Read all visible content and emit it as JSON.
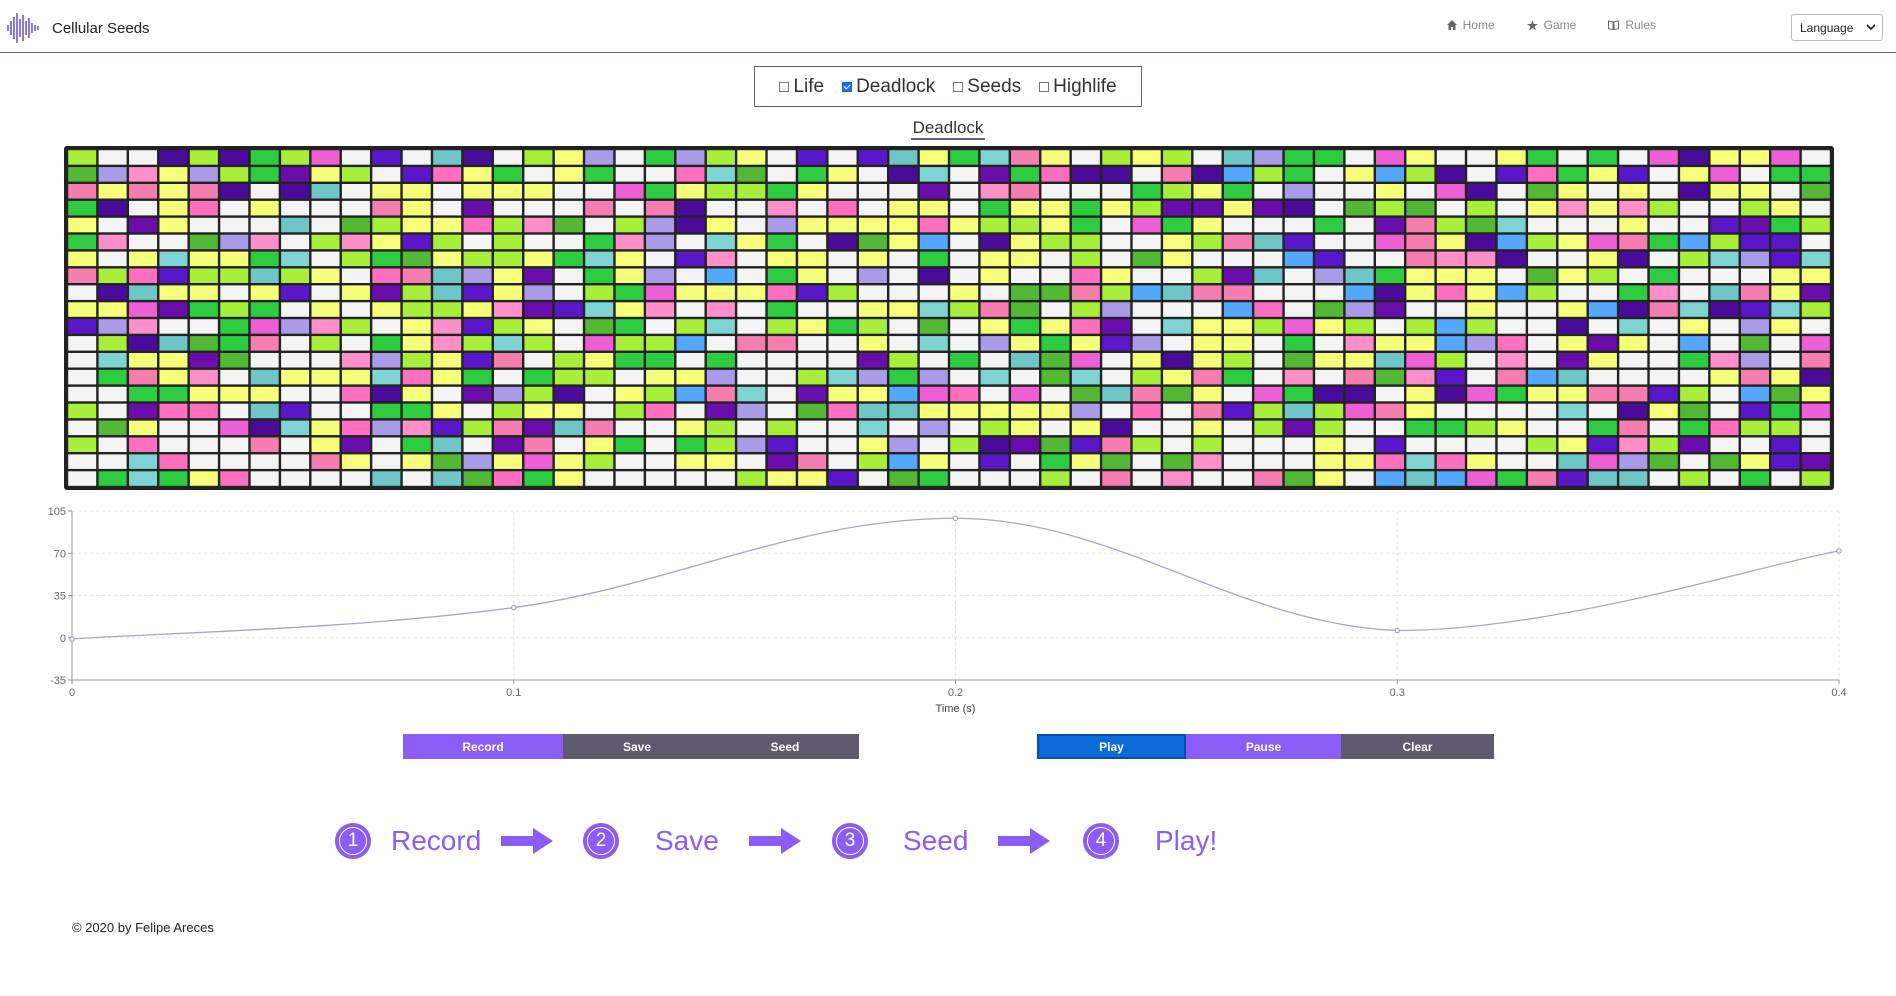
{
  "app": {
    "title": "Cellular Seeds"
  },
  "nav": {
    "items": [
      {
        "label": "Home",
        "icon": "home-icon"
      },
      {
        "label": "Game",
        "icon": "star-icon"
      },
      {
        "label": "Rules",
        "icon": "book-icon"
      }
    ],
    "language": "Language"
  },
  "rules": {
    "options": [
      {
        "label": "Life",
        "checked": false
      },
      {
        "label": "Deadlock",
        "checked": true
      },
      {
        "label": "Seeds",
        "checked": false
      },
      {
        "label": "Highlife",
        "checked": false
      }
    ],
    "active_title": "Deadlock"
  },
  "grid": {
    "cols": 58,
    "rows": 20,
    "palette": [
      "#f4f4f4",
      "#f4f4f4",
      "#f4f4f4",
      "#f4f4f4",
      "#f4f4f4",
      "#f4f4f4",
      "#f4f4f4",
      "#f4f4f4",
      "#f4f4f4",
      "#f4f4f4",
      "#f5ff7a",
      "#f5ff7a",
      "#f5ff7a",
      "#f5ff7a",
      "#f5ff7a",
      "#f5ff7a",
      "#a8ef3c",
      "#a8ef3c",
      "#a8ef3c",
      "#2ecc40",
      "#2ecc40",
      "#53b833",
      "#6a0dad",
      "#4b0b9a",
      "#5a17c9",
      "#6ec6c6",
      "#7fd3d3",
      "#a99be8",
      "#ff8fc8",
      "#f57db0",
      "#ff6fbf",
      "#ee5fd5",
      "#55a8ff"
    ]
  },
  "chart_data": {
    "type": "line",
    "x": [
      0,
      0.1,
      0.2,
      0.3,
      0.4
    ],
    "y": [
      -1,
      25,
      99,
      6,
      72
    ],
    "xlabel": "Time (s)",
    "xlim": [
      0,
      0.4
    ],
    "ylim": [
      -35,
      105
    ],
    "xticks": [
      "0",
      "0.1",
      "0.2",
      "0.3",
      "0.4"
    ],
    "yticks": [
      "105",
      "70",
      "35",
      "0",
      "-35"
    ],
    "ytick_values": [
      105,
      70,
      35,
      0,
      -35
    ],
    "grid": true,
    "line_color": "#a9a4cf"
  },
  "controls": {
    "record": "Record",
    "save": "Save",
    "seed": "Seed",
    "play": "Play",
    "pause": "Pause",
    "clear": "Clear"
  },
  "steps": [
    {
      "num": "1",
      "label": "Record"
    },
    {
      "num": "2",
      "label": "Save"
    },
    {
      "num": "3",
      "label": "Seed"
    },
    {
      "num": "4",
      "label": "Play!"
    }
  ],
  "footer": {
    "text": "© 2020 by Felipe Areces"
  },
  "colors": {
    "accent": "#8b5cf6",
    "dark_button": "#5f5a6e",
    "play_button": "#0b6bd8",
    "border": "#6b5b95"
  }
}
